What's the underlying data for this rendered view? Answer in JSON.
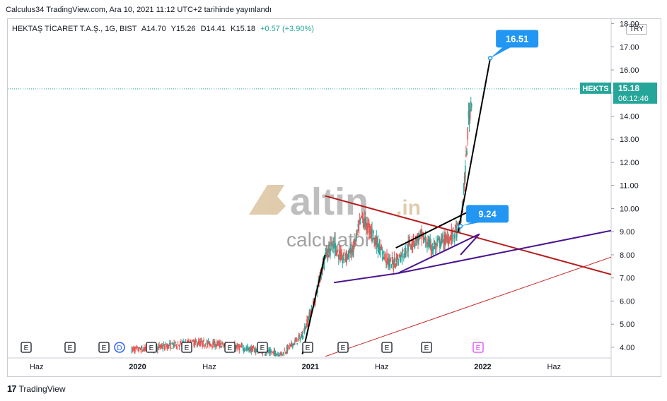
{
  "published_line": "Calculus34 TradingView.com, Ara 10, 2021 11:12 UTC+2 tarihinde yayınlandı",
  "legend": {
    "symbol": "HEKTAŞ TİCARET T.A.Ş., 1G, BIST",
    "open": "A14.70",
    "high": "Y15.26",
    "low": "D14.41",
    "close": "K15.18",
    "change": "+0.57 (+3.90%)"
  },
  "currency": "TRY",
  "price_label": {
    "ticker": "HEKTS",
    "price": "15.18",
    "countdown": "06:12:46"
  },
  "callouts": [
    {
      "text": "16.51",
      "value": 16.51,
      "date": "2022-01-17"
    },
    {
      "text": "9.24",
      "value": 9.24,
      "date": "2021-11-15"
    }
  ],
  "watermark": {
    "brand": "altin",
    "suffix": ".in",
    "sub": "calculator"
  },
  "event_markers": [
    "E",
    "E",
    "E",
    "D",
    "E",
    "E",
    "E",
    "E",
    "E",
    "E",
    "E",
    "E",
    "E"
  ],
  "footer": {
    "logo": "17",
    "brand": "TradingView"
  },
  "colors": {
    "up": "#26a69a",
    "down": "#ef5350",
    "price_line": "#26a69a",
    "callout": "#2196f3",
    "trend_black": "#000000",
    "trend_red": "#b71c1c",
    "trend_purple": "#4a148c",
    "trend_red_thin": "#c62828",
    "marker_future": "#e040fb"
  },
  "chart_data": {
    "type": "candlestick",
    "x_tick_labels": [
      "Haz",
      "2020",
      "Haz",
      "2021",
      "Haz",
      "2022",
      "Haz"
    ],
    "y_ticks": [
      "4.00",
      "5.00",
      "6.00",
      "7.00",
      "8.00",
      "9.00",
      "10.00",
      "11.00",
      "12.00",
      "13.00",
      "14.00",
      "15.00",
      "16.00",
      "17.00",
      "18.00"
    ],
    "ylim": [
      3.6,
      18.2
    ],
    "xlim": [
      "2019-04-01",
      "2022-09-30"
    ],
    "last_price": 15.18,
    "approx_close_path": [
      {
        "date": "2019-12-20",
        "close": 3.9
      },
      {
        "date": "2020-01-15",
        "close": 3.9
      },
      {
        "date": "2020-03-20",
        "close": 4.1
      },
      {
        "date": "2020-05-01",
        "close": 4.2
      },
      {
        "date": "2020-07-01",
        "close": 4.1
      },
      {
        "date": "2020-09-01",
        "close": 3.9
      },
      {
        "date": "2020-11-01",
        "close": 3.7
      },
      {
        "date": "2020-12-15",
        "close": 4.5
      },
      {
        "date": "2021-01-10",
        "close": 6.0
      },
      {
        "date": "2021-02-01",
        "close": 8.0
      },
      {
        "date": "2021-02-20",
        "close": 8.4
      },
      {
        "date": "2021-03-10",
        "close": 7.8
      },
      {
        "date": "2021-04-01",
        "close": 8.2
      },
      {
        "date": "2021-04-20",
        "close": 9.6
      },
      {
        "date": "2021-05-10",
        "close": 9.0
      },
      {
        "date": "2021-06-01",
        "close": 8.1
      },
      {
        "date": "2021-06-20",
        "close": 7.6
      },
      {
        "date": "2021-07-10",
        "close": 7.9
      },
      {
        "date": "2021-08-01",
        "close": 8.5
      },
      {
        "date": "2021-08-25",
        "close": 8.8
      },
      {
        "date": "2021-09-15",
        "close": 8.3
      },
      {
        "date": "2021-10-10",
        "close": 8.6
      },
      {
        "date": "2021-11-01",
        "close": 8.9
      },
      {
        "date": "2021-11-15",
        "close": 9.24
      },
      {
        "date": "2021-11-25",
        "close": 11.5
      },
      {
        "date": "2021-12-02",
        "close": 13.8
      },
      {
        "date": "2021-12-07",
        "close": 14.6
      },
      {
        "date": "2021-12-10",
        "close": 15.18
      }
    ],
    "trendlines": [
      {
        "name": "rise-line-1",
        "color": "#000000",
        "from": {
          "date": "2020-12-15",
          "price": 3.7
        },
        "to": {
          "date": "2021-02-01",
          "price": 8.0
        }
      },
      {
        "name": "rise-line-2",
        "color": "#000000",
        "from": {
          "date": "2021-11-10",
          "price": 9.0
        },
        "to": {
          "date": "2022-01-17",
          "price": 16.51
        }
      },
      {
        "name": "channel-upper",
        "color": "#000000",
        "from": {
          "date": "2021-07-01",
          "price": 8.3
        },
        "to": {
          "date": "2021-12-05",
          "price": 9.9
        }
      },
      {
        "name": "resistance",
        "color": "#b71c1c",
        "from": {
          "date": "2021-02-01",
          "price": 10.55
        },
        "to": {
          "date": "2022-09-30",
          "price": 7.15
        }
      },
      {
        "name": "support-1",
        "color": "#4a148c",
        "from": {
          "date": "2021-02-20",
          "price": 6.8
        },
        "to": {
          "date": "2021-07-05",
          "price": 7.2
        }
      },
      {
        "name": "support-2",
        "color": "#4a148c",
        "from": {
          "date": "2021-07-05",
          "price": 7.2
        },
        "to": {
          "date": "2021-12-25",
          "price": 8.9
        }
      },
      {
        "name": "support-long",
        "color": "#4a148c",
        "from": {
          "date": "2021-07-05",
          "price": 7.2
        },
        "to": {
          "date": "2022-09-30",
          "price": 9.05
        }
      },
      {
        "name": "long-support",
        "color": "#c62828",
        "from": {
          "date": "2021-02-01",
          "price": 3.6
        },
        "to": {
          "date": "2022-09-30",
          "price": 7.9
        }
      },
      {
        "name": "triangle-edge",
        "color": "#4a148c",
        "from": {
          "date": "2021-11-15",
          "price": 8.0
        },
        "to": {
          "date": "2021-12-25",
          "price": 8.9
        }
      }
    ]
  }
}
